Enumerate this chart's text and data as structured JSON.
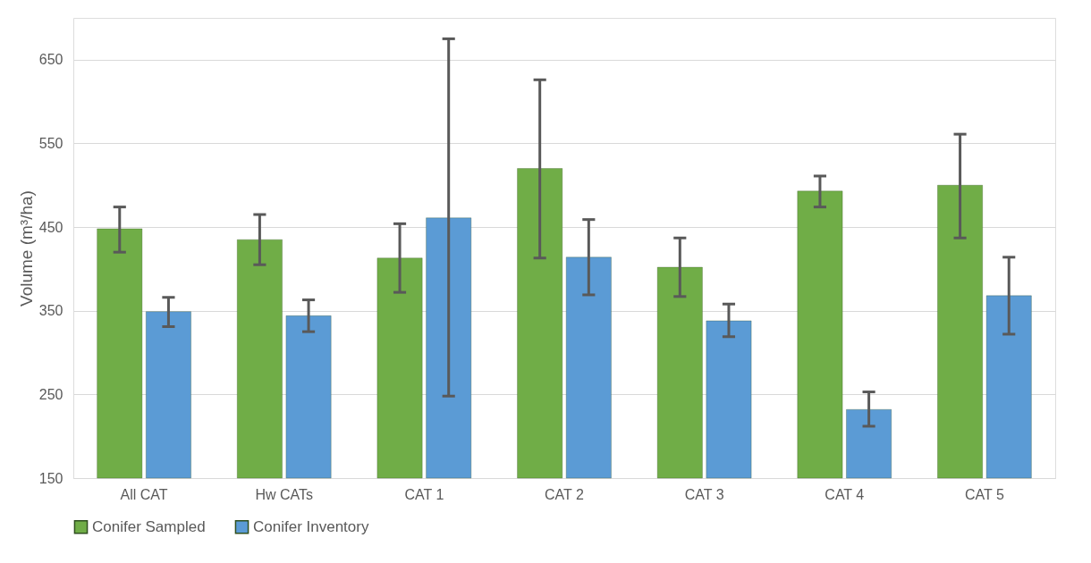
{
  "chart_data": {
    "type": "bar",
    "ylabel": "Volume (m³/ha)",
    "categories": [
      "All CAT",
      "Hw CATs",
      "CAT 1",
      "CAT 2",
      "CAT 3",
      "CAT 4",
      "CAT 5"
    ],
    "series": [
      {
        "name": "Conifer Sampled",
        "color": "#70ad47",
        "values": [
          448,
          435,
          413,
          520,
          402,
          493,
          500
        ],
        "errors": [
          [
            420,
            474
          ],
          [
            405,
            465
          ],
          [
            372,
            454
          ],
          [
            413,
            626
          ],
          [
            367,
            437
          ],
          [
            474,
            511
          ],
          [
            437,
            561
          ]
        ]
      },
      {
        "name": "Conifer Inventory",
        "color": "#5b9bd5",
        "values": [
          349,
          344,
          461,
          414,
          338,
          232,
          368
        ],
        "errors": [
          [
            331,
            366
          ],
          [
            325,
            363
          ],
          [
            248,
            675
          ],
          [
            369,
            459
          ],
          [
            319,
            358
          ],
          [
            212,
            253
          ],
          [
            322,
            414
          ]
        ]
      }
    ],
    "ylim": [
      150,
      700
    ],
    "yticks": [
      150,
      250,
      350,
      450,
      550,
      650
    ],
    "grid": "y",
    "legend": "bottom"
  }
}
